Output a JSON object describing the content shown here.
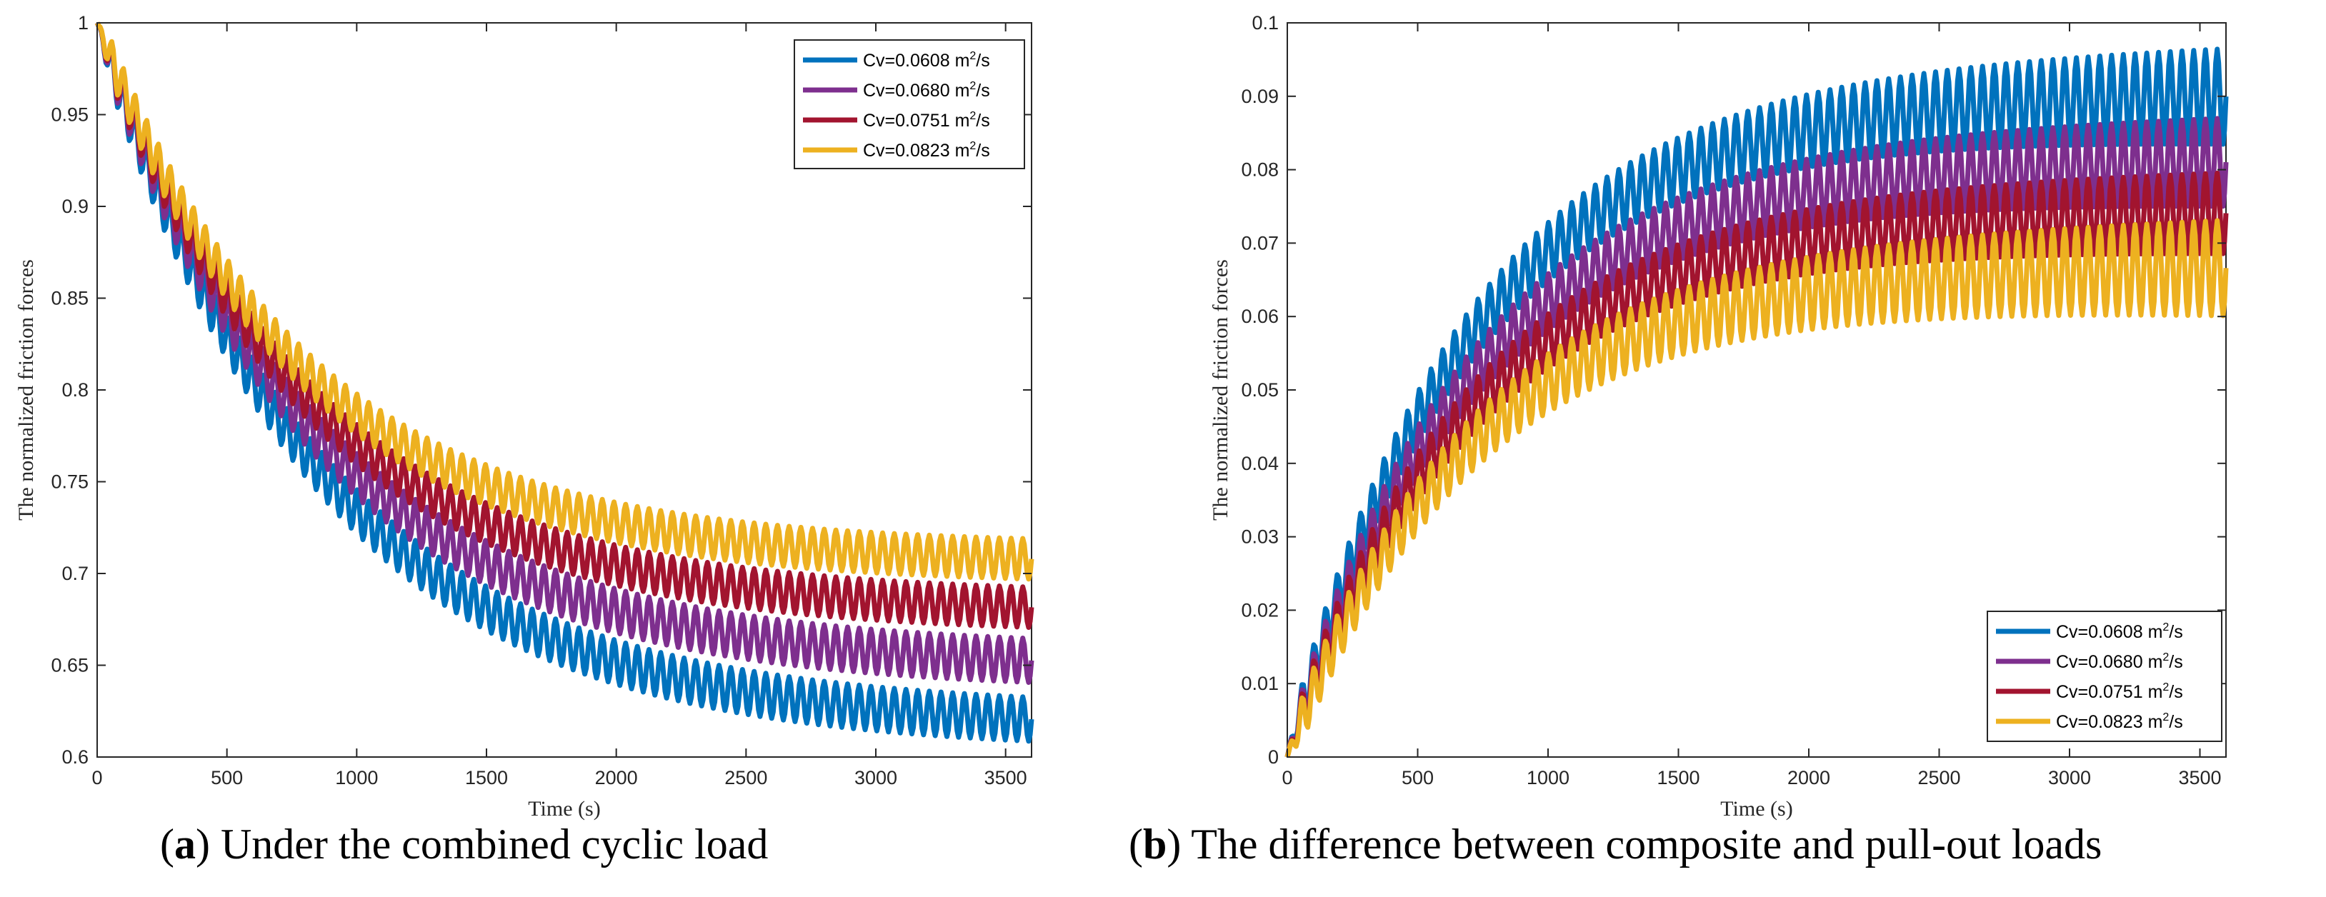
{
  "chart_data": [
    {
      "id": "a",
      "type": "line",
      "caption_letter": "a",
      "caption_text": "Under the combined cyclic load",
      "xlabel": "Time (s)",
      "ylabel": "The normalized friction forces",
      "xlim": [
        0,
        3600
      ],
      "ylim": [
        0.6,
        1.0
      ],
      "xticks": [
        "0",
        "500",
        "1000",
        "1500",
        "2000",
        "2500",
        "3000",
        "3500"
      ],
      "yticks": [
        "0.6",
        "0.65",
        "0.7",
        "0.75",
        "0.8",
        "0.85",
        "0.9",
        "0.95",
        "1"
      ],
      "legend_position": "top-right",
      "series": [
        {
          "name": "Cv=0.0608 m²/s",
          "label_main": "Cv=0.0608 m",
          "label_sup": "2",
          "label_tail": "/s",
          "color": "#0072BD",
          "start": 1.0,
          "end": 0.615,
          "tau": 850,
          "amp_start": 0.012,
          "amp_end": 0.012
        },
        {
          "name": "Cv=0.0680 m²/s",
          "label_main": "Cv=0.0680 m",
          "label_sup": "2",
          "label_tail": "/s",
          "color": "#7E2F8E",
          "start": 1.0,
          "end": 0.648,
          "tau": 830,
          "amp_start": 0.012,
          "amp_end": 0.012
        },
        {
          "name": "Cv=0.0751 m²/s",
          "label_main": "Cv=0.0751 m",
          "label_sup": "2",
          "label_tail": "/s",
          "color": "#A2142F",
          "start": 1.0,
          "end": 0.678,
          "tau": 800,
          "amp_start": 0.011,
          "amp_end": 0.011
        },
        {
          "name": "Cv=0.0823 m²/s",
          "label_main": "Cv=0.0823 m",
          "label_sup": "2",
          "label_tail": "/s",
          "color": "#EDB120",
          "start": 1.0,
          "end": 0.705,
          "tau": 780,
          "amp_start": 0.011,
          "amp_end": 0.011
        }
      ]
    },
    {
      "id": "b",
      "type": "line",
      "caption_letter": "b",
      "caption_text": "The difference between composite and pull-out loads",
      "xlabel": "Time (s)",
      "ylabel": "The normalized friction forces",
      "xlim": [
        0,
        3600
      ],
      "ylim": [
        0,
        0.1
      ],
      "xticks": [
        "0",
        "500",
        "1000",
        "1500",
        "2000",
        "2500",
        "3000",
        "3500"
      ],
      "yticks": [
        "0",
        "0.01",
        "0.02",
        "0.03",
        "0.04",
        "0.05",
        "0.06",
        "0.07",
        "0.08",
        "0.09",
        "0.1"
      ],
      "legend_position": "bottom-right",
      "series": [
        {
          "name": "Cv=0.0608 m²/s",
          "label_main": "Cv=0.0608 m",
          "label_sup": "2",
          "label_tail": "/s",
          "color": "#0072BD",
          "start": 0.0,
          "end": 0.0905,
          "tau": 700,
          "amp_start": 0.003,
          "amp_end": 0.0065
        },
        {
          "name": "Cv=0.0680 m²/s",
          "label_main": "Cv=0.0680 m",
          "label_sup": "2",
          "label_tail": "/s",
          "color": "#7E2F8E",
          "start": 0.0,
          "end": 0.0815,
          "tau": 700,
          "amp_start": 0.003,
          "amp_end": 0.006
        },
        {
          "name": "Cv=0.0751 m²/s",
          "label_main": "Cv=0.0751 m",
          "label_sup": "2",
          "label_tail": "/s",
          "color": "#A2142F",
          "start": 0.0,
          "end": 0.0745,
          "tau": 700,
          "amp_start": 0.003,
          "amp_end": 0.0055
        },
        {
          "name": "Cv=0.0823 m²/s",
          "label_main": "Cv=0.0823 m",
          "label_sup": "2",
          "label_tail": "/s",
          "color": "#EDB120",
          "start": 0.0,
          "end": 0.067,
          "tau": 700,
          "amp_start": 0.003,
          "amp_end": 0.0065
        }
      ]
    }
  ]
}
